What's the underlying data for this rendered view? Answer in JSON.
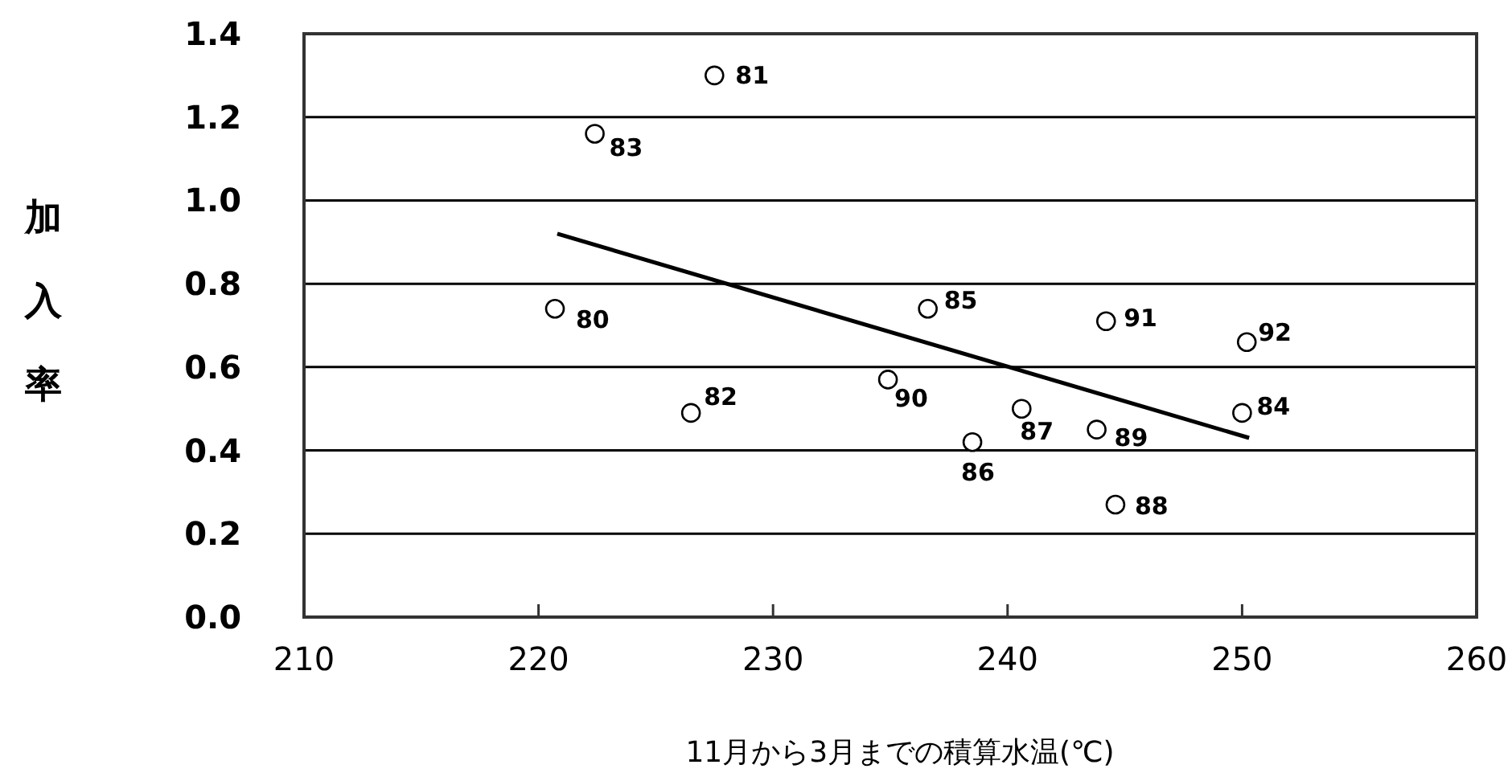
{
  "chart_data": {
    "type": "scatter",
    "xlabel": "11月から3月までの積算水温(℃)",
    "ylabel": "加入率",
    "xlim": [
      210,
      260
    ],
    "ylim": [
      0,
      1.4
    ],
    "xticks": [
      210,
      220,
      230,
      240,
      250,
      260
    ],
    "yticks": [
      {
        "value": 0,
        "label": "0.0"
      },
      0.2,
      0.4,
      0.6,
      0.8,
      {
        "value": 1,
        "label": "1.0"
      },
      1.2,
      1.4
    ],
    "grid": "y",
    "series": [
      {
        "type": "scatter",
        "color": "#000000",
        "marker": "circle",
        "x": [
          220.7,
          227.5,
          226.5,
          222.4,
          250.0,
          236.6,
          238.5,
          240.6,
          244.6,
          243.8,
          234.9,
          244.2,
          250.2
        ],
        "values": [
          0.74,
          1.3,
          0.49,
          1.16,
          0.49,
          0.74,
          0.42,
          0.5,
          0.27,
          0.45,
          0.57,
          0.71,
          0.66
        ]
      },
      {
        "type": "line",
        "color": "#000000",
        "marker": "none",
        "x": [
          220.8,
          250.3
        ],
        "values": [
          0.92,
          0.43
        ]
      }
    ],
    "annotations": [
      {
        "text": "80",
        "x": 220.7,
        "y": 0.74
      },
      {
        "text": "81",
        "x": 227.5,
        "y": 1.3
      },
      {
        "text": "82",
        "x": 226.5,
        "y": 0.49
      },
      {
        "text": "83",
        "x": 222.4,
        "y": 1.16
      },
      {
        "text": "84",
        "x": 250.0,
        "y": 0.49
      },
      {
        "text": "85",
        "x": 236.6,
        "y": 0.74
      },
      {
        "text": "86",
        "x": 238.5,
        "y": 0.42
      },
      {
        "text": "87",
        "x": 240.6,
        "y": 0.5
      },
      {
        "text": "88",
        "x": 244.6,
        "y": 0.27
      },
      {
        "text": "89",
        "x": 243.8,
        "y": 0.45
      },
      {
        "text": "90",
        "x": 234.9,
        "y": 0.57
      },
      {
        "text": "91",
        "x": 244.2,
        "y": 0.71
      },
      {
        "text": "92",
        "x": 250.2,
        "y": 0.66
      }
    ]
  }
}
